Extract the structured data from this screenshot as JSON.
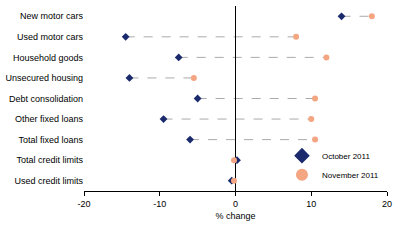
{
  "chart_data": {
    "type": "scatter",
    "orientation": "horizontal",
    "x_label": "% change",
    "categories": [
      "New motor cars",
      "Used motor cars",
      "Household goods",
      "Unsecured housing",
      "Debt consolidation",
      "Other fixed loans",
      "Total fixed loans",
      "Total credit limits",
      "Used credit limits"
    ],
    "series": [
      {
        "name": "October 2011",
        "color": "#1a2a6c",
        "marker": "diamond",
        "values": [
          14,
          -14.5,
          -7.5,
          -14,
          -5,
          -9.5,
          -6,
          0.2,
          -0.5
        ]
      },
      {
        "name": "November 2011",
        "color": "#f4a582",
        "marker": "circle",
        "values": [
          18,
          8,
          12,
          -5.5,
          10.5,
          10,
          10.5,
          -0.2,
          -0.2
        ]
      }
    ],
    "xlim": [
      -20,
      20
    ],
    "xticks": [
      -20,
      -10,
      0,
      10,
      20
    ],
    "grid": false,
    "legend": "bottom right"
  }
}
